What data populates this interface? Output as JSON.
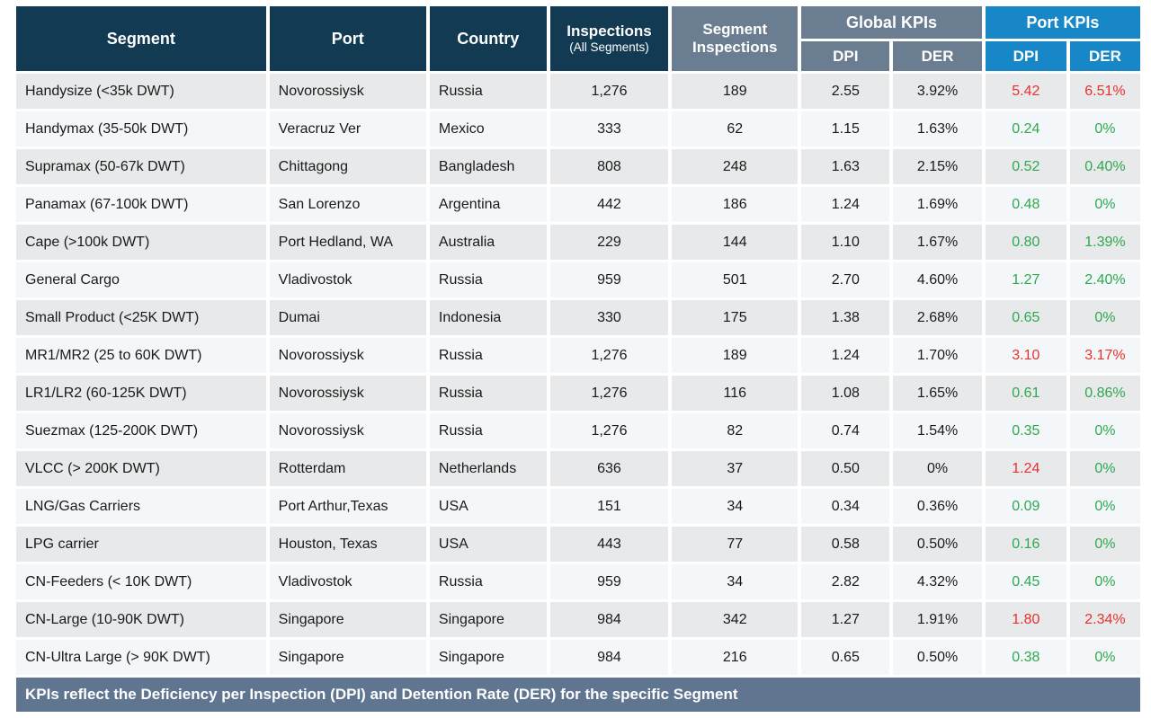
{
  "colors": {
    "header_navy": "#123a52",
    "header_gray_blue": "#6b7d90",
    "header_bright_blue": "#1787c8",
    "footer_bar": "#5f7590",
    "row_odd": "#e8e9ea",
    "row_even": "#f4f7f9",
    "kpi_good_green": "#2fa84f",
    "kpi_bad_red": "#e8312f",
    "header_text": "#ffffff",
    "body_text": "#1a1a1a"
  },
  "headers": {
    "segment": "Segment",
    "port": "Port",
    "country": "Country",
    "inspections_line1": "Inspections",
    "inspections_line2": "(All Segments)",
    "segment_inspections_line1": "Segment",
    "segment_inspections_line2": "Inspections",
    "global_kpis": "Global KPIs",
    "port_kpis": "Port KPIs",
    "dpi": "DPI",
    "der": "DER"
  },
  "footer": {
    "text": "KPIs reflect the Deficiency per Inspection (DPI) and Detention Rate (DER) for the specific Segment"
  },
  "chart_data": {
    "type": "table",
    "title": "Segment / Port inspection KPI table",
    "columns": [
      "Segment",
      "Port",
      "Country",
      "Inspections (All Segments)",
      "Segment Inspections",
      "Global KPIs DPI",
      "Global KPIs DER",
      "Port KPIs DPI",
      "Port KPIs DER"
    ],
    "rows": [
      {
        "segment": "Handysize (<35k DWT)",
        "port": "Novorossiysk",
        "country": "Russia",
        "inspections_all_segments": "1,276",
        "segment_inspections": "189",
        "global_dpi": "2.55",
        "global_der": "3.92%",
        "port_dpi": "5.42",
        "port_der": "6.51%",
        "port_dpi_status": "red",
        "port_der_status": "red"
      },
      {
        "segment": "Handymax (35-50k DWT)",
        "port": "Veracruz Ver",
        "country": "Mexico",
        "inspections_all_segments": "333",
        "segment_inspections": "62",
        "global_dpi": "1.15",
        "global_der": "1.63%",
        "port_dpi": "0.24",
        "port_der": "0%",
        "port_dpi_status": "green",
        "port_der_status": "green"
      },
      {
        "segment": "Supramax (50-67k DWT)",
        "port": "Chittagong",
        "country": "Bangladesh",
        "inspections_all_segments": "808",
        "segment_inspections": "248",
        "global_dpi": "1.63",
        "global_der": "2.15%",
        "port_dpi": "0.52",
        "port_der": "0.40%",
        "port_dpi_status": "green",
        "port_der_status": "green"
      },
      {
        "segment": "Panamax (67-100k DWT)",
        "port": "San Lorenzo",
        "country": "Argentina",
        "inspections_all_segments": "442",
        "segment_inspections": "186",
        "global_dpi": "1.24",
        "global_der": "1.69%",
        "port_dpi": "0.48",
        "port_der": "0%",
        "port_dpi_status": "green",
        "port_der_status": "green"
      },
      {
        "segment": "Cape (>100k DWT)",
        "port": "Port Hedland, WA",
        "country": "Australia",
        "inspections_all_segments": "229",
        "segment_inspections": "144",
        "global_dpi": "1.10",
        "global_der": "1.67%",
        "port_dpi": "0.80",
        "port_der": "1.39%",
        "port_dpi_status": "green",
        "port_der_status": "green"
      },
      {
        "segment": "General Cargo",
        "port": "Vladivostok",
        "country": "Russia",
        "inspections_all_segments": "959",
        "segment_inspections": "501",
        "global_dpi": "2.70",
        "global_der": "4.60%",
        "port_dpi": "1.27",
        "port_der": "2.40%",
        "port_dpi_status": "green",
        "port_der_status": "green"
      },
      {
        "segment": "Small Product (<25K DWT)",
        "port": "Dumai",
        "country": "Indonesia",
        "inspections_all_segments": "330",
        "segment_inspections": "175",
        "global_dpi": "1.38",
        "global_der": "2.68%",
        "port_dpi": "0.65",
        "port_der": "0%",
        "port_dpi_status": "green",
        "port_der_status": "green"
      },
      {
        "segment": "MR1/MR2 (25 to 60K DWT)",
        "port": "Novorossiysk",
        "country": "Russia",
        "inspections_all_segments": "1,276",
        "segment_inspections": "189",
        "global_dpi": "1.24",
        "global_der": "1.70%",
        "port_dpi": "3.10",
        "port_der": "3.17%",
        "port_dpi_status": "red",
        "port_der_status": "red"
      },
      {
        "segment": "LR1/LR2 (60-125K DWT)",
        "port": "Novorossiysk",
        "country": "Russia",
        "inspections_all_segments": "1,276",
        "segment_inspections": "116",
        "global_dpi": "1.08",
        "global_der": "1.65%",
        "port_dpi": "0.61",
        "port_der": "0.86%",
        "port_dpi_status": "green",
        "port_der_status": "green"
      },
      {
        "segment": "Suezmax (125-200K DWT)",
        "port": "Novorossiysk",
        "country": "Russia",
        "inspections_all_segments": "1,276",
        "segment_inspections": "82",
        "global_dpi": "0.74",
        "global_der": "1.54%",
        "port_dpi": "0.35",
        "port_der": "0%",
        "port_dpi_status": "green",
        "port_der_status": "green"
      },
      {
        "segment": "VLCC (> 200K DWT)",
        "port": "Rotterdam",
        "country": "Netherlands",
        "inspections_all_segments": "636",
        "segment_inspections": "37",
        "global_dpi": "0.50",
        "global_der": "0%",
        "port_dpi": "1.24",
        "port_der": "0%",
        "port_dpi_status": "red",
        "port_der_status": "green"
      },
      {
        "segment": "LNG/Gas Carriers",
        "port": "Port Arthur,Texas",
        "country": "USA",
        "inspections_all_segments": "151",
        "segment_inspections": "34",
        "global_dpi": "0.34",
        "global_der": "0.36%",
        "port_dpi": "0.09",
        "port_der": "0%",
        "port_dpi_status": "green",
        "port_der_status": "green"
      },
      {
        "segment": "LPG carrier",
        "port": "Houston, Texas",
        "country": "USA",
        "inspections_all_segments": "443",
        "segment_inspections": "77",
        "global_dpi": "0.58",
        "global_der": "0.50%",
        "port_dpi": "0.16",
        "port_der": "0%",
        "port_dpi_status": "green",
        "port_der_status": "green"
      },
      {
        "segment": "CN-Feeders (< 10K DWT)",
        "port": "Vladivostok",
        "country": "Russia",
        "inspections_all_segments": "959",
        "segment_inspections": "34",
        "global_dpi": "2.82",
        "global_der": "4.32%",
        "port_dpi": "0.45",
        "port_der": "0%",
        "port_dpi_status": "green",
        "port_der_status": "green"
      },
      {
        "segment": "CN-Large (10-90K DWT)",
        "port": "Singapore",
        "country": "Singapore",
        "inspections_all_segments": "984",
        "segment_inspections": "342",
        "global_dpi": "1.27",
        "global_der": "1.91%",
        "port_dpi": "1.80",
        "port_der": "2.34%",
        "port_dpi_status": "red",
        "port_der_status": "red"
      },
      {
        "segment": "CN-Ultra Large (> 90K DWT)",
        "port": "Singapore",
        "country": "Singapore",
        "inspections_all_segments": "984",
        "segment_inspections": "216",
        "global_dpi": "0.65",
        "global_der": "0.50%",
        "port_dpi": "0.38",
        "port_der": "0%",
        "port_dpi_status": "green",
        "port_der_status": "green"
      }
    ]
  }
}
